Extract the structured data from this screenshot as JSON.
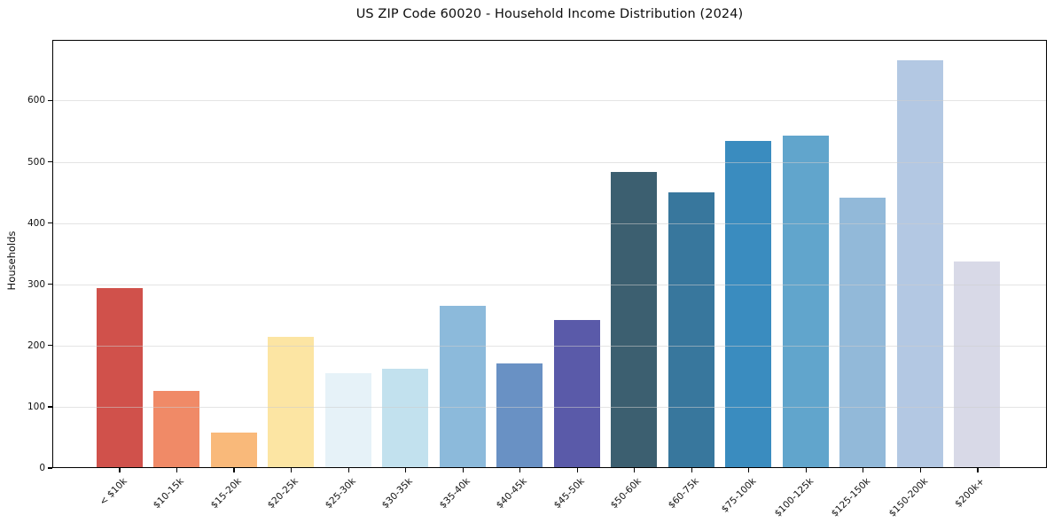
{
  "figure": {
    "title": "US ZIP Code 60020 - Household Income Distribution (2024)"
  },
  "chart_data": {
    "type": "bar",
    "title": "US ZIP Code 60020 - Household Income Distribution (2024)",
    "xlabel": "",
    "ylabel": "Households",
    "categories": [
      "< $10k",
      "$10-15k",
      "$15-20k",
      "$20-25k",
      "$25-30k",
      "$30-35k",
      "$35-40k",
      "$40-45k",
      "$45-50k",
      "$50-60k",
      "$60-75k",
      "$75-100k",
      "$100-125k",
      "$125-150k",
      "$150-200k",
      "$200k+"
    ],
    "values": [
      292,
      125,
      57,
      213,
      154,
      161,
      264,
      169,
      240,
      482,
      449,
      532,
      542,
      440,
      665,
      336
    ],
    "bar_colors": [
      "#d0514b",
      "#f08a67",
      "#f9b97a",
      "#fce5a3",
      "#e6f2f8",
      "#c2e1ee",
      "#8cbadb",
      "#6991c4",
      "#5a5aa9",
      "#3c5f70",
      "#38779d",
      "#3a8cbf",
      "#61a5cc",
      "#92b9d9",
      "#b3c8e3",
      "#d8d9e7"
    ],
    "yticks": [
      0,
      100,
      200,
      300,
      400,
      500,
      600
    ],
    "ylim": [
      0,
      699
    ],
    "grid": "horizontal-light",
    "legend_position": "none",
    "colors": {
      "background": "#ffffff",
      "axis": "#000000",
      "grid": "#e9e9e9",
      "text": "#111111"
    }
  }
}
